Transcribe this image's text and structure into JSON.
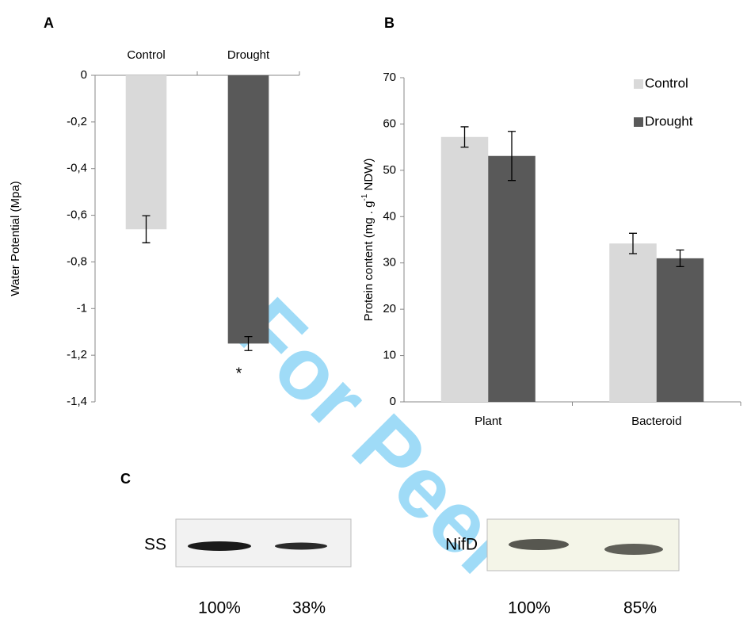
{
  "charts": [
    {
      "type": "bar",
      "panel": "A",
      "y_label": "Water Potential (Mpa)",
      "categories": [
        "Control",
        "Drought"
      ],
      "values": [
        -0.66,
        -1.15
      ],
      "errors": [
        0.058,
        0.03
      ],
      "colors": [
        "#d9d9d9",
        "#595959"
      ],
      "annotation": "*",
      "ylim": [
        -1.4,
        0
      ],
      "yticks": [
        0,
        {
          "value": -0.2,
          "label": "-0,2"
        },
        {
          "value": -0.4,
          "label": "-0,4"
        },
        {
          "value": -0.6,
          "label": "-0,6"
        },
        {
          "value": -0.8,
          "label": "-0,8"
        },
        -1,
        {
          "value": -1.2,
          "label": "-1,2"
        },
        {
          "value": -1.4,
          "label": "-1,4"
        }
      ]
    },
    {
      "type": "grouped_bar",
      "panel": "B",
      "y_label": {
        "main": "Protein content (mg . g",
        "sup": "-1",
        "end": " NDW)"
      },
      "categories": [
        "Plant",
        "Bacteroid"
      ],
      "series": [
        {
          "name": "Control",
          "color": "#d9d9d9",
          "values": [
            57.2,
            34.2
          ],
          "errors": [
            2.2,
            2.2
          ]
        },
        {
          "name": "Drought",
          "color": "#595959",
          "values": [
            53.1,
            31.0
          ],
          "errors": [
            5.3,
            1.8
          ]
        }
      ],
      "ylim": [
        0,
        70
      ],
      "yticks": [
        0,
        10,
        20,
        30,
        40,
        50,
        60,
        70
      ],
      "legend": "top-right"
    }
  ],
  "panel_c": {
    "letter": "C",
    "blots": [
      {
        "name": "SS",
        "percentages": [
          "100%",
          "38%"
        ]
      },
      {
        "name": "NifD",
        "percentages": [
          "100%",
          "85%"
        ]
      }
    ]
  },
  "watermark": "For Peer"
}
